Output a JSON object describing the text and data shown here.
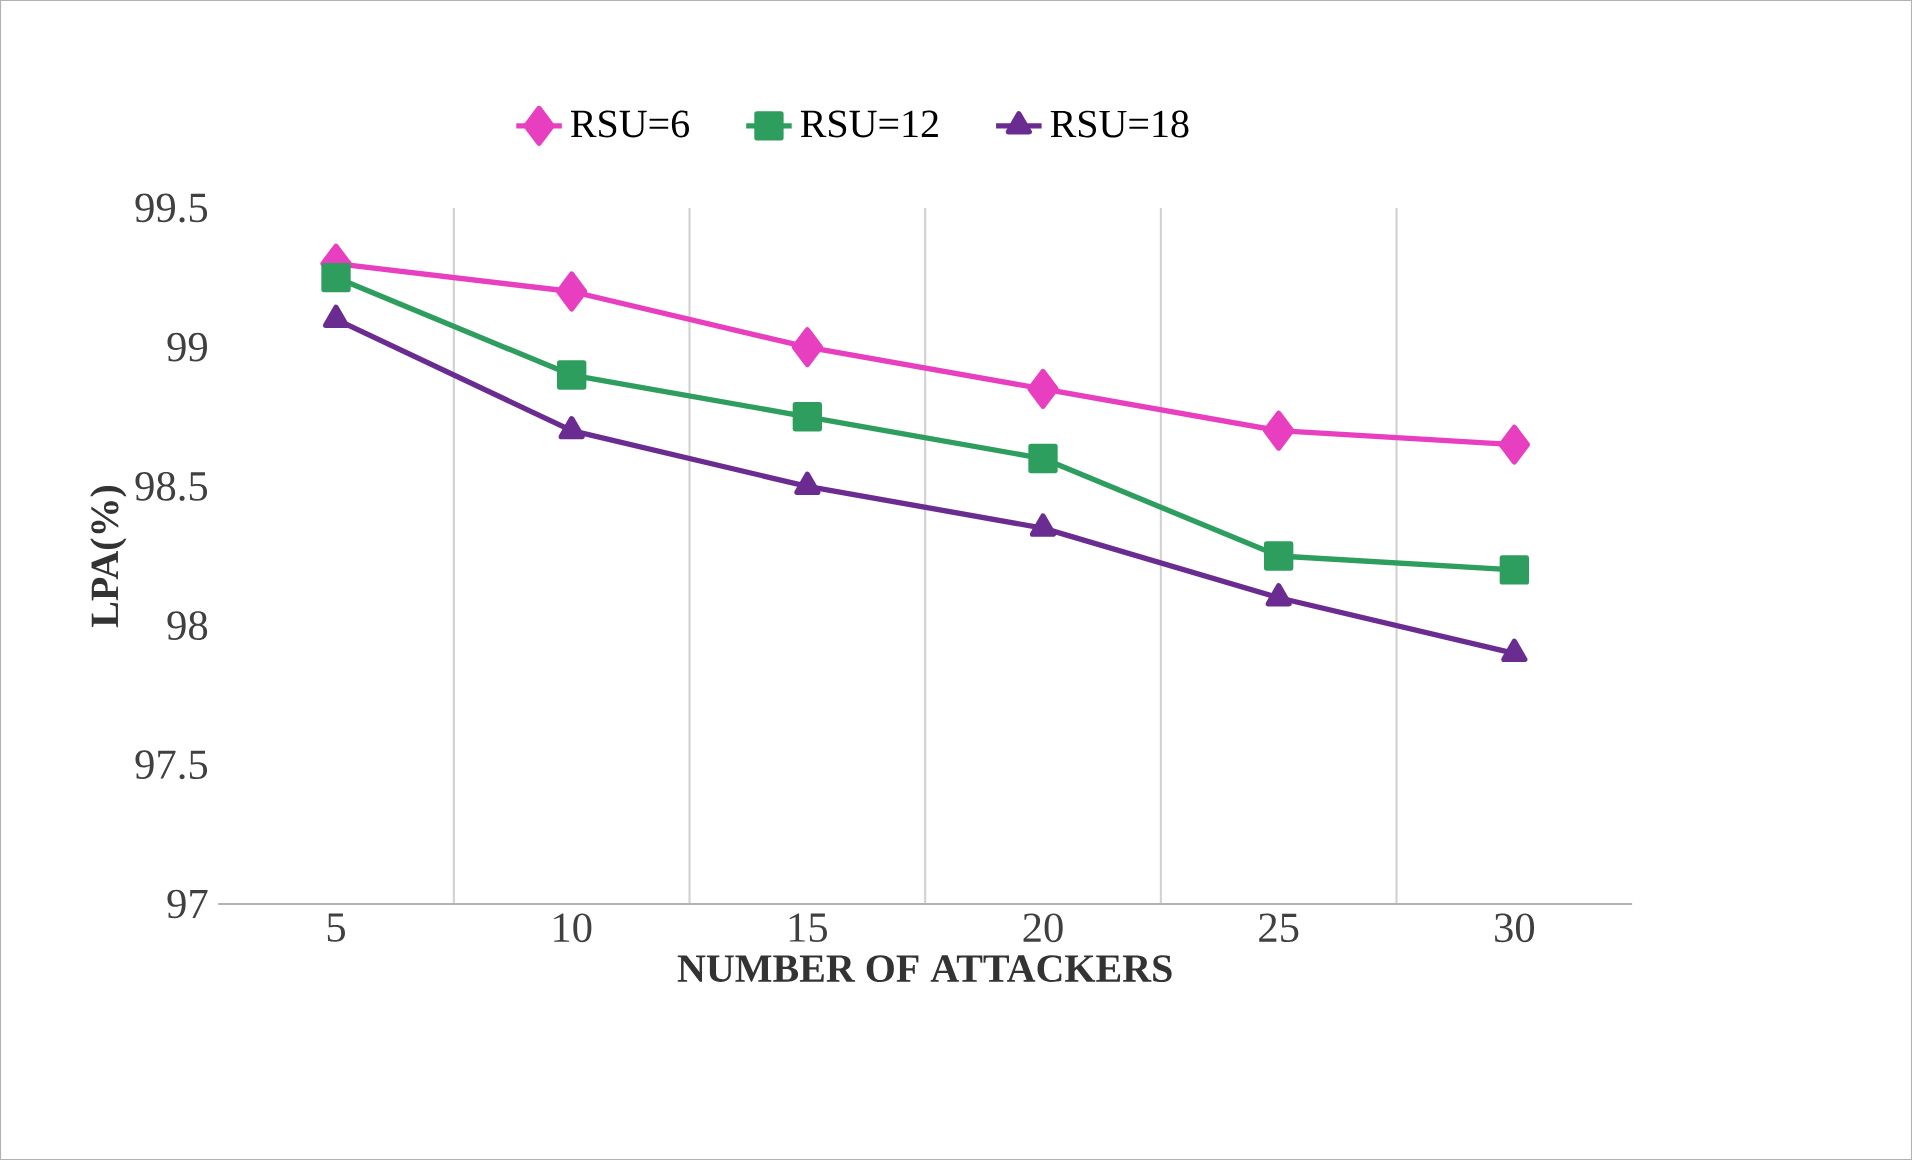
{
  "chart_data": {
    "type": "line",
    "xlabel": "NUMBER  OF ATTACKERS",
    "ylabel": "LPA(%)",
    "categories": [
      "5",
      "10",
      "15",
      "20",
      "25",
      "30"
    ],
    "series": [
      {
        "name": "RSU=6",
        "color": "#e83fc0",
        "marker": "diamond",
        "values": [
          99.3,
          99.2,
          99.0,
          98.85,
          98.7,
          98.65
        ]
      },
      {
        "name": "RSU=12",
        "color": "#2e9e5e",
        "marker": "square",
        "values": [
          99.25,
          98.9,
          98.75,
          98.6,
          98.25,
          98.2
        ]
      },
      {
        "name": "RSU=18",
        "color": "#6a2c91",
        "marker": "triangle",
        "values": [
          99.1,
          98.7,
          98.5,
          98.35,
          98.1,
          97.9
        ]
      }
    ],
    "ylim": [
      97,
      99.5
    ],
    "yticks": [
      97,
      97.5,
      98,
      98.5,
      99,
      99.5
    ],
    "grid": "x",
    "legend": "top"
  }
}
